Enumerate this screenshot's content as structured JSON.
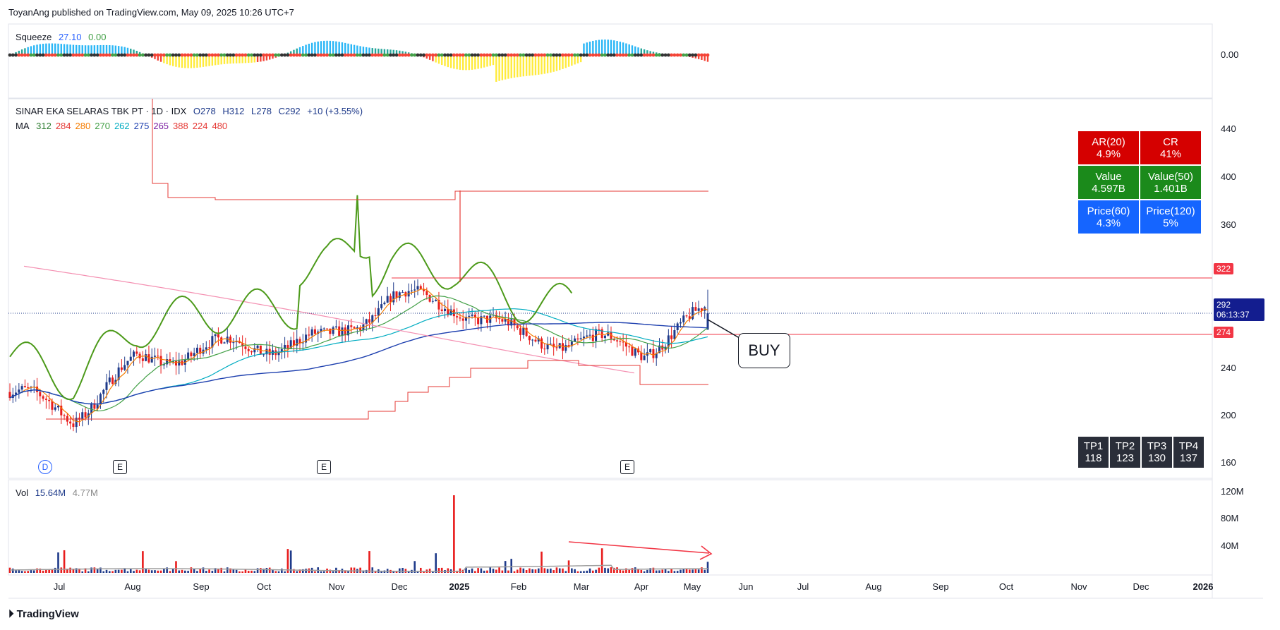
{
  "publisher_line": "ToyanAng published on TradingView.com, May 09, 2025 10:26 UTC+7",
  "squeeze": {
    "label": "Squeeze",
    "v1": "27.10",
    "v2": "0.00",
    "axis_value": "0.00"
  },
  "ohlc": {
    "name": "SINAR EKA SELARAS TBK PT · 1D · IDX",
    "open": "O278",
    "high": "H312",
    "low": "L278",
    "close": "C292",
    "change": "+10 (+3.55%)"
  },
  "ma_legend": {
    "label": "MA",
    "values": [
      {
        "text": "312",
        "color": "#2e7d32"
      },
      {
        "text": "284",
        "color": "#e53935"
      },
      {
        "text": "280",
        "color": "#f57c00"
      },
      {
        "text": "270",
        "color": "#43a047"
      },
      {
        "text": "262",
        "color": "#00acc1"
      },
      {
        "text": "275",
        "color": "#1e40af"
      },
      {
        "text": "265",
        "color": "#7b1fa2"
      },
      {
        "text": "388",
        "color": "#e53935"
      },
      {
        "text": "224",
        "color": "#e53935"
      },
      {
        "text": "480",
        "color": "#e53935"
      }
    ]
  },
  "volume": {
    "label": "Vol",
    "v1": "15.64M",
    "v2": "4.77M",
    "axis": [
      "120M",
      "80M",
      "40M"
    ]
  },
  "price_axis": [
    "440",
    "400",
    "360",
    "240",
    "200",
    "160"
  ],
  "price_tags": {
    "upper": "322",
    "current": "292",
    "countdown": "06:13:37",
    "lower": "274"
  },
  "stats": [
    [
      {
        "title": "AR(20)",
        "value": "4.9%",
        "color": "#d50000"
      },
      {
        "title": "CR",
        "value": "41%",
        "color": "#d50000"
      }
    ],
    [
      {
        "title": "Value",
        "value": "4.597B",
        "color": "#1b8a1b"
      },
      {
        "title": "Value(50)",
        "value": "1.401B",
        "color": "#1b8a1b"
      }
    ],
    [
      {
        "title": "Price(60)",
        "value": "4.3%",
        "color": "#1565ff"
      },
      {
        "title": "Price(120)",
        "value": "5%",
        "color": "#1565ff"
      }
    ]
  ],
  "targets": [
    {
      "label": "TP1",
      "value": "118"
    },
    {
      "label": "TP2",
      "value": "123"
    },
    {
      "label": "TP3",
      "value": "130"
    },
    {
      "label": "TP4",
      "value": "137"
    }
  ],
  "annotation": "BUY",
  "events": {
    "dividend": "D",
    "earnings": "E"
  },
  "time_axis": [
    "Jul",
    "Aug",
    "Sep",
    "Oct",
    "Nov",
    "Dec",
    "2025",
    "Feb",
    "Mar",
    "Apr",
    "May",
    "Jun",
    "Jul",
    "Aug",
    "Sep",
    "Oct",
    "Nov",
    "Dec",
    "2026"
  ],
  "footer": "TradingView",
  "chart_data": {
    "type": "candlestick",
    "symbol": "SINAR EKA SELARAS TBK PT",
    "interval": "1D",
    "exchange": "IDX",
    "ylim": [
      160,
      460
    ],
    "last": {
      "open": 278,
      "high": 312,
      "low": 278,
      "close": 292
    },
    "levels": {
      "resistance": 322,
      "support": 274
    },
    "close_series": [
      {
        "x": "2024-06",
        "y": 225
      },
      {
        "x": "2024-07",
        "y": 205
      },
      {
        "x": "2024-08",
        "y": 250
      },
      {
        "x": "2024-09",
        "y": 262
      },
      {
        "x": "2024-10",
        "y": 265
      },
      {
        "x": "2024-11",
        "y": 268
      },
      {
        "x": "2024-12",
        "y": 305
      },
      {
        "x": "2025-01",
        "y": 300
      },
      {
        "x": "2025-02",
        "y": 272
      },
      {
        "x": "2025-03",
        "y": 268
      },
      {
        "x": "2025-04",
        "y": 262
      },
      {
        "x": "2025-05",
        "y": 292
      }
    ],
    "volume_events": [
      {
        "x": "2025-01",
        "y": 110
      },
      {
        "x": "2025-05",
        "y": 15.64
      }
    ]
  }
}
